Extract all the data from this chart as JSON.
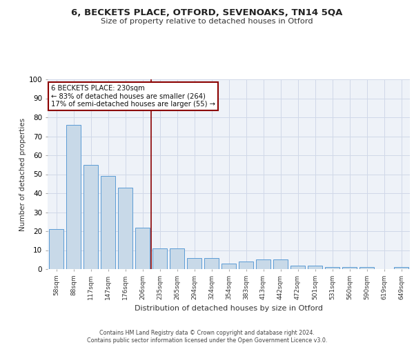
{
  "title1": "6, BECKETS PLACE, OTFORD, SEVENOAKS, TN14 5QA",
  "title2": "Size of property relative to detached houses in Otford",
  "xlabel": "Distribution of detached houses by size in Otford",
  "ylabel": "Number of detached properties",
  "categories": [
    "58sqm",
    "88sqm",
    "117sqm",
    "147sqm",
    "176sqm",
    "206sqm",
    "235sqm",
    "265sqm",
    "294sqm",
    "324sqm",
    "354sqm",
    "383sqm",
    "413sqm",
    "442sqm",
    "472sqm",
    "501sqm",
    "531sqm",
    "560sqm",
    "590sqm",
    "619sqm",
    "649sqm"
  ],
  "values": [
    21,
    76,
    55,
    49,
    43,
    22,
    11,
    11,
    6,
    6,
    3,
    4,
    5,
    5,
    2,
    2,
    1,
    1,
    1,
    0,
    1
  ],
  "bar_color": "#c8d9e8",
  "bar_edge_color": "#5b9bd5",
  "grid_color": "#d0d8e8",
  "bg_color": "#eef2f8",
  "vline_x": 6,
  "vline_color": "#8b0000",
  "annotation_text": "6 BECKETS PLACE: 230sqm\n← 83% of detached houses are smaller (264)\n17% of semi-detached houses are larger (55) →",
  "annotation_box_color": "#8b0000",
  "footer": "Contains HM Land Registry data © Crown copyright and database right 2024.\nContains public sector information licensed under the Open Government Licence v3.0.",
  "ylim": [
    0,
    100
  ],
  "yticks": [
    0,
    10,
    20,
    30,
    40,
    50,
    60,
    70,
    80,
    90,
    100
  ]
}
